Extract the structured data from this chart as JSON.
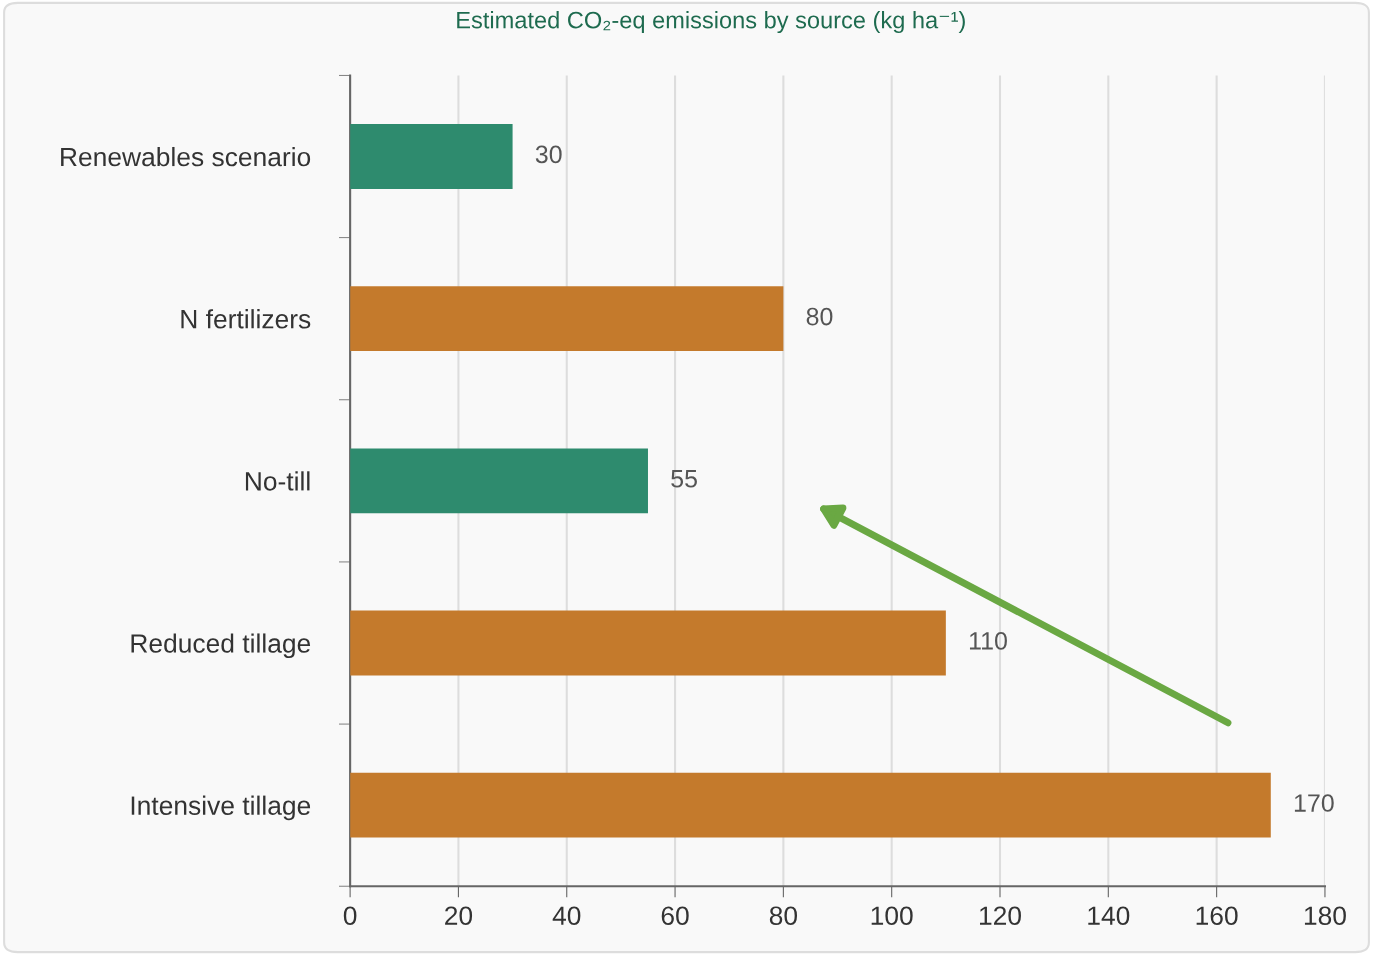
{
  "chart_data": {
    "type": "bar",
    "orientation": "horizontal",
    "title": "Estimated CO₂-eq emissions by source (kg ha⁻¹)",
    "categories": [
      "Renewables scenario",
      "N fertilizers",
      "No-till",
      "Reduced tillage",
      "Intensive tillage"
    ],
    "values": [
      30,
      80,
      55,
      110,
      170
    ],
    "colors": [
      "#2e8b6e",
      "#c47a2c",
      "#2e8b6e",
      "#c47a2c",
      "#c47a2c"
    ],
    "xlim": [
      0,
      180
    ],
    "xticks": [
      0,
      20,
      40,
      60,
      80,
      100,
      120,
      140,
      160,
      180
    ],
    "grid": "x",
    "data_labels": true
  }
}
